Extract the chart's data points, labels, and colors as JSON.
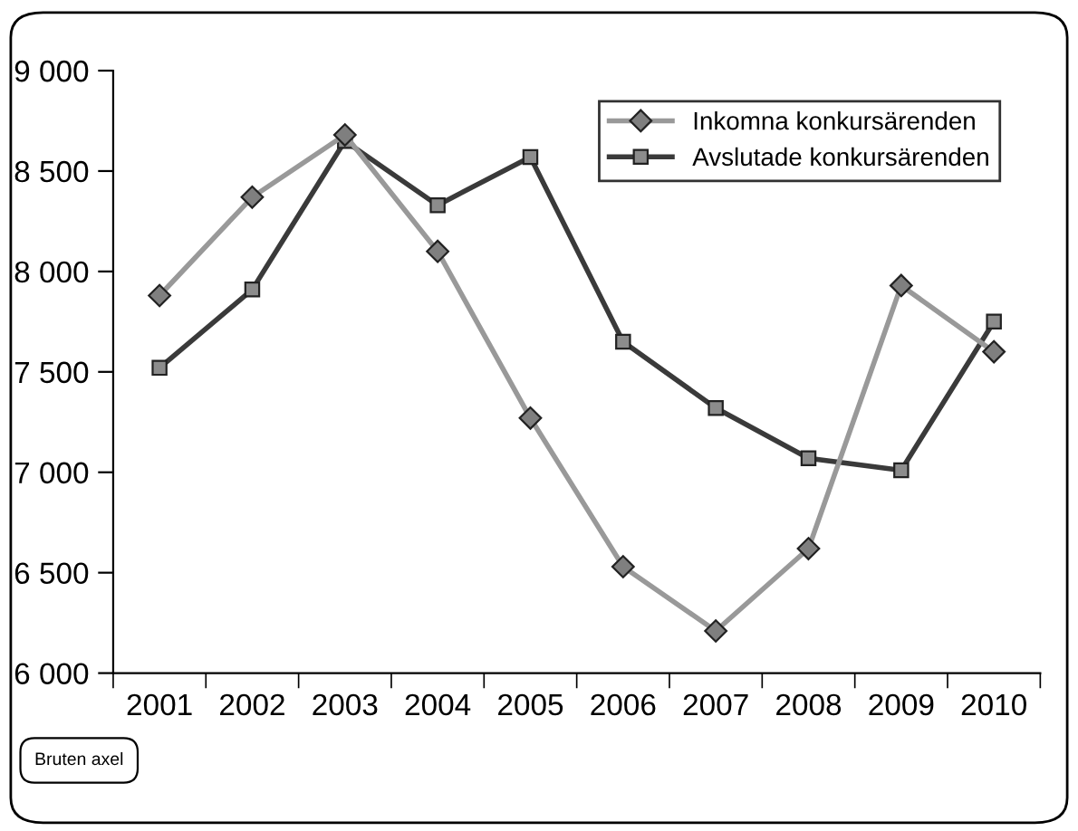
{
  "chart_data": {
    "type": "line",
    "categories": [
      "2001",
      "2002",
      "2003",
      "2004",
      "2005",
      "2006",
      "2007",
      "2008",
      "2009",
      "2010"
    ],
    "series": [
      {
        "name": "Inkomna konkursärenden",
        "color": "#999999",
        "marker": "diamond",
        "values": [
          7880,
          8370,
          8680,
          8100,
          7270,
          6530,
          6210,
          6620,
          7930,
          7600
        ]
      },
      {
        "name": "Avslutade konkursärenden",
        "color": "#3a3a3a",
        "marker": "square",
        "values": [
          7520,
          7910,
          8650,
          8330,
          8570,
          7650,
          7320,
          7070,
          7010,
          7750
        ]
      }
    ],
    "ylim": [
      6000,
      9000
    ],
    "yticks": [
      {
        "value": 6000,
        "label": "6 000"
      },
      {
        "value": 6500,
        "label": "6 500"
      },
      {
        "value": 7000,
        "label": "7 000"
      },
      {
        "value": 7500,
        "label": "7 500"
      },
      {
        "value": 8000,
        "label": "8 000"
      },
      {
        "value": 8500,
        "label": "8 500"
      },
      {
        "value": 9000,
        "label": "9 000"
      }
    ],
    "annotations": [
      "Bruten axel"
    ],
    "legend": "top right",
    "grid": false,
    "line_style": "solid"
  }
}
